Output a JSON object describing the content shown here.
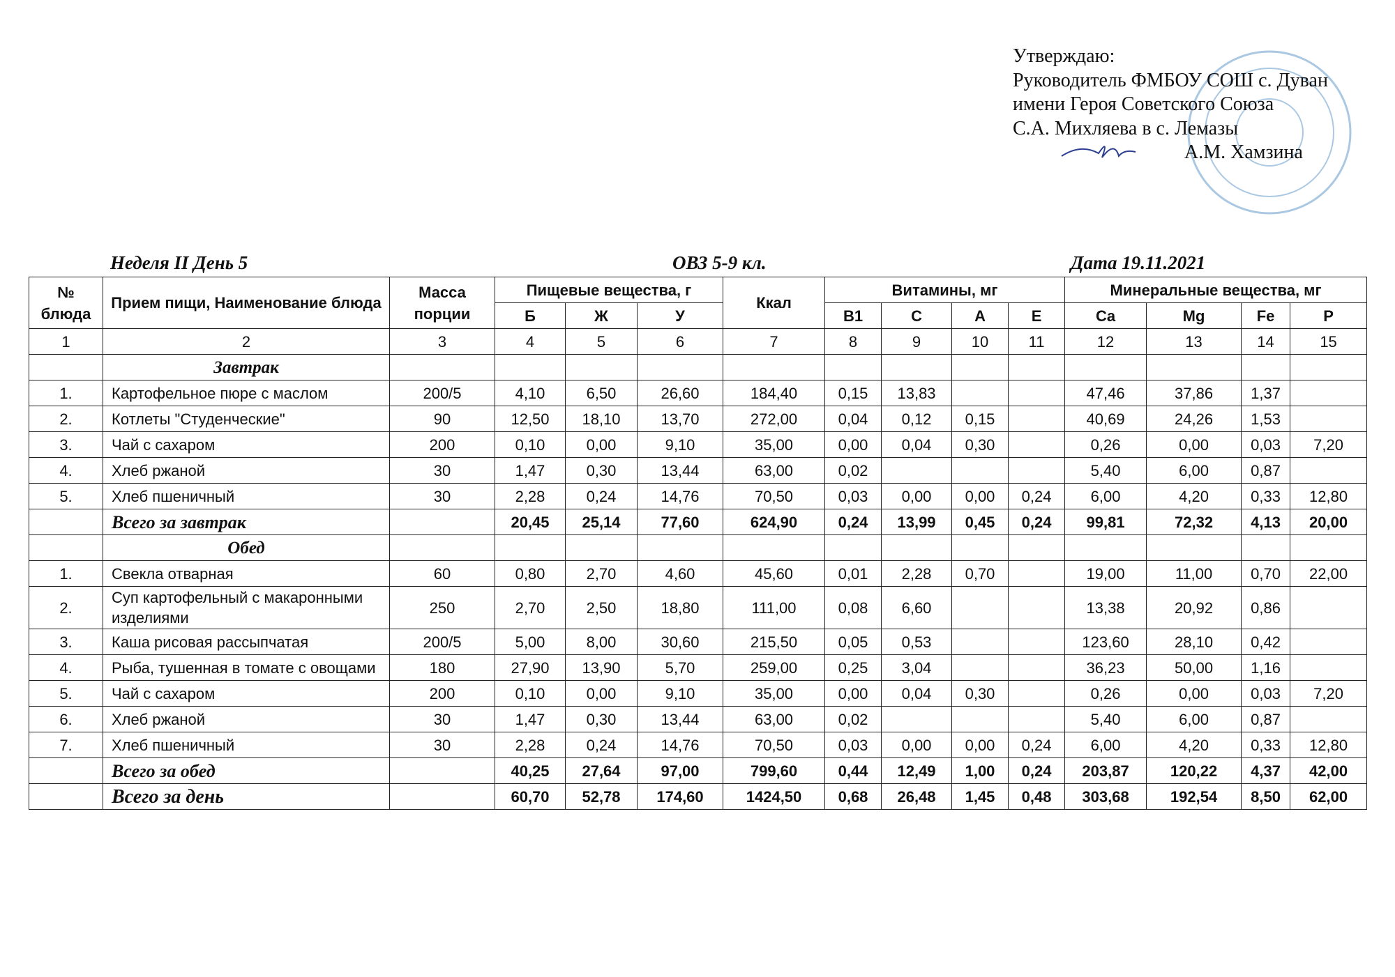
{
  "approval": {
    "lines": [
      "Утверждаю:",
      "Руководитель ФМБОУ СОШ с. Дуван",
      "имени Героя Советского Союза",
      "С.А. Михляева в с. Лемазы"
    ],
    "signatory": "А.М. Хамзина"
  },
  "title": {
    "week": "Неделя II  День 5",
    "group": "ОВЗ 5-9 кл.",
    "date": "Дата 19.11.2021"
  },
  "table": {
    "header": {
      "number": "№ блюда",
      "name": "Прием пищи, Наименование блюда",
      "mass": "Масса порции",
      "nutrients": "Пищевые вещества, г",
      "kcal": "Ккал",
      "vitamins": "Витамины, мг",
      "minerals": "Минеральные вещества, мг",
      "nutrient_cols": [
        "Б",
        "Ж",
        "У"
      ],
      "vitamin_cols": [
        "B1",
        "C",
        "A",
        "E"
      ],
      "mineral_cols": [
        "Ca",
        "Mg",
        "Fe",
        "P"
      ]
    },
    "column_numbers": [
      1,
      2,
      3,
      4,
      5,
      6,
      7,
      8,
      9,
      10,
      11,
      12,
      13,
      14,
      15
    ],
    "sections": [
      {
        "name": "Завтрак",
        "rows": [
          [
            "1.",
            "Картофельное пюре с маслом",
            "200/5",
            "4,10",
            "6,50",
            "26,60",
            "184,40",
            "0,15",
            "13,83",
            null,
            null,
            "47,46",
            "37,86",
            "1,37",
            null
          ],
          [
            "2.",
            "Котлеты \"Студенческие\"",
            "90",
            "12,50",
            "18,10",
            "13,70",
            "272,00",
            "0,04",
            "0,12",
            "0,15",
            null,
            "40,69",
            "24,26",
            "1,53",
            null
          ],
          [
            "3.",
            "Чай с сахаром",
            "200",
            "0,10",
            "0,00",
            "9,10",
            "35,00",
            "0,00",
            "0,04",
            "0,30",
            null,
            "0,26",
            "0,00",
            "0,03",
            "7,20"
          ],
          [
            "4.",
            "Хлеб ржаной",
            "30",
            "1,47",
            "0,30",
            "13,44",
            "63,00",
            "0,02",
            null,
            null,
            null,
            "5,40",
            "6,00",
            "0,87",
            null
          ],
          [
            "5.",
            "Хлеб пшеничный",
            "30",
            "2,28",
            "0,24",
            "14,76",
            "70,50",
            "0,03",
            "0,00",
            "0,00",
            "0,24",
            "6,00",
            "4,20",
            "0,33",
            "12,80"
          ]
        ],
        "total": [
          null,
          "Всего за завтрак",
          null,
          "20,45",
          "25,14",
          "77,60",
          "624,90",
          "0,24",
          "13,99",
          "0,45",
          "0,24",
          "99,81",
          "72,32",
          "4,13",
          "20,00"
        ]
      },
      {
        "name": "Обед",
        "rows": [
          [
            "1.",
            "Свекла отварная",
            "60",
            "0,80",
            "2,70",
            "4,60",
            "45,60",
            "0,01",
            "2,28",
            "0,70",
            null,
            "19,00",
            "11,00",
            "0,70",
            "22,00"
          ],
          [
            "2.",
            "Суп картофельный с макаронными изделиями",
            "250",
            "2,70",
            "2,50",
            "18,80",
            "111,00",
            "0,08",
            "6,60",
            null,
            null,
            "13,38",
            "20,92",
            "0,86",
            null
          ],
          [
            "3.",
            "Каша рисовая рассыпчатая",
            "200/5",
            "5,00",
            "8,00",
            "30,60",
            "215,50",
            "0,05",
            "0,53",
            null,
            null,
            "123,60",
            "28,10",
            "0,42",
            null
          ],
          [
            "4.",
            "Рыба, тушенная в томате с овощами",
            "180",
            "27,90",
            "13,90",
            "5,70",
            "259,00",
            "0,25",
            "3,04",
            null,
            null,
            "36,23",
            "50,00",
            "1,16",
            null
          ],
          [
            "5.",
            "Чай с сахаром",
            "200",
            "0,10",
            "0,00",
            "9,10",
            "35,00",
            "0,00",
            "0,04",
            "0,30",
            null,
            "0,26",
            "0,00",
            "0,03",
            "7,20"
          ],
          [
            "6.",
            "Хлеб ржаной",
            "30",
            "1,47",
            "0,30",
            "13,44",
            "63,00",
            "0,02",
            null,
            null,
            null,
            "5,40",
            "6,00",
            "0,87",
            null
          ],
          [
            "7.",
            "Хлеб пшеничный",
            "30",
            "2,28",
            "0,24",
            "14,76",
            "70,50",
            "0,03",
            "0,00",
            "0,00",
            "0,24",
            "6,00",
            "4,20",
            "0,33",
            "12,80"
          ]
        ],
        "total": [
          null,
          "Всего за обед",
          null,
          "40,25",
          "27,64",
          "97,00",
          "799,60",
          "0,44",
          "12,49",
          "1,00",
          "0,24",
          "203,87",
          "120,22",
          "4,37",
          "42,00"
        ]
      }
    ],
    "day_total": [
      null,
      "Всего за день",
      null,
      "60,70",
      "52,78",
      "174,60",
      "1424,50",
      "0,68",
      "26,48",
      "1,45",
      "0,48",
      "303,68",
      "192,54",
      "8,50",
      "62,00"
    ]
  }
}
